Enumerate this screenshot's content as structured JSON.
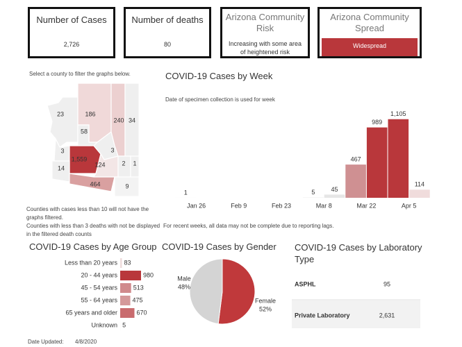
{
  "cards": [
    {
      "title": "Number of Cases",
      "value": "2,726"
    },
    {
      "title": "Number of deaths",
      "value": "80"
    },
    {
      "title": "Arizona Community Risk",
      "value": "Increasing with some area of heightened risk"
    },
    {
      "title": "Arizona Community Spread",
      "value": "Widespread"
    }
  ],
  "map": {
    "instruction": "Select a county to filter the graphs below.",
    "counties": [
      "23",
      "186",
      "240",
      "34",
      "58",
      "3",
      "1,559",
      "3",
      "124",
      "14",
      "2",
      "1",
      "464",
      "9"
    ],
    "notes": [
      "Counties with cases less than 10 will not have the graphs filtered.",
      "Counties with less than 3 deaths with not be displayed in the filtered death counts"
    ]
  },
  "week_chart": {
    "type": "bar",
    "title": "COVID-19 Cases by Week",
    "subtitle": "Date of specimen collection is used for week",
    "categories": [
      null,
      "Jan 26",
      null,
      "Feb 9",
      null,
      "Feb 23",
      null,
      "Mar 8",
      null,
      "Mar 22",
      null,
      "Apr 5"
    ],
    "values": [
      1,
      null,
      null,
      null,
      null,
      null,
      5,
      45,
      467,
      989,
      1105,
      114
    ],
    "value_labels": [
      "1",
      null,
      null,
      null,
      null,
      null,
      "5",
      "45",
      "467",
      "989",
      "1,105",
      "114"
    ],
    "colors": [
      "#ececec",
      null,
      null,
      null,
      null,
      null,
      "#ececec",
      "#e6e6e6",
      "#cf9092",
      "#b9373b",
      "#b9373b",
      "#f0dcdc"
    ],
    "ylim": [
      0,
      1200
    ],
    "footnote": "For recent weeks, all data may not be complete due to reporting lags."
  },
  "age_chart": {
    "type": "bar",
    "title": "COVID-19 Cases by Age Group",
    "categories": [
      "Less than 20 years",
      "20 - 44 years",
      "45 - 54 years",
      "55 - 64 years",
      "65 years and older",
      "Unknown"
    ],
    "values": [
      83,
      980,
      513,
      475,
      670,
      5
    ],
    "colors": [
      "#eedcdc",
      "#b9373b",
      "#d08a8c",
      "#d4999a",
      "#c96b6e",
      "#f2e6e6"
    ],
    "xlim": [
      0,
      980
    ]
  },
  "gender_chart": {
    "type": "pie",
    "title": "COVID-19 Cases by Gender",
    "categories": [
      "Male",
      "Female"
    ],
    "values": [
      48,
      52
    ],
    "value_labels": [
      "48%",
      "52%"
    ],
    "colors": [
      "#d4d4d4",
      "#c0393b"
    ]
  },
  "lab_table": {
    "title": "COVID-19 Cases by Laboratory Type",
    "rows": [
      [
        "ASPHL",
        "95"
      ],
      [
        "Private Laboratory",
        "2,631"
      ]
    ]
  },
  "date_updated": {
    "label": "Date Updated:",
    "value": "4/8/2020"
  }
}
